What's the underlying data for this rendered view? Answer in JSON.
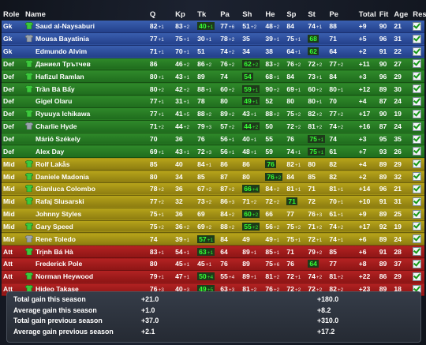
{
  "columns": [
    "Role",
    "Name",
    "Q",
    "Kp",
    "Tk",
    "Pa",
    "Sh",
    "He",
    "Sp",
    "St",
    "Pe",
    "Total",
    "Fit",
    "Age",
    "Rest"
  ],
  "players": [
    {
      "role": "Gk",
      "shirt": "green",
      "name": "Saud al-Naysaburi",
      "Q": [
        "82",
        "+1"
      ],
      "Kp": [
        "83",
        "+2"
      ],
      "Tk": [
        "40",
        "+1"
      ],
      "Pa": [
        "77",
        "+6"
      ],
      "Sh": [
        "51",
        "+2"
      ],
      "He": [
        "48",
        "+2"
      ],
      "Sp": [
        "84",
        ""
      ],
      "St": [
        "74",
        "+1"
      ],
      "Pe": [
        "88",
        ""
      ],
      "Total": "+9",
      "Fit": "90",
      "Age": "21",
      "hl": [
        "Tk"
      ],
      "band": "gk"
    },
    {
      "role": "Gk",
      "shirt": "gray",
      "name": "Mousa Bayatinia",
      "Q": [
        "77",
        "+1"
      ],
      "Kp": [
        "75",
        "+1"
      ],
      "Tk": [
        "30",
        "+1"
      ],
      "Pa": [
        "78",
        "+2"
      ],
      "Sh": [
        "35",
        ""
      ],
      "He": [
        "39",
        "+1"
      ],
      "Sp": [
        "75",
        "+1"
      ],
      "St": [
        "68",
        ""
      ],
      "Pe": [
        "71",
        ""
      ],
      "Total": "+5",
      "Fit": "96",
      "Age": "31",
      "hl": [
        "St"
      ],
      "band": "gk"
    },
    {
      "role": "Gk",
      "shirt": "",
      "name": "Edmundo Alvim",
      "Q": [
        "71",
        "+1"
      ],
      "Kp": [
        "70",
        "+1"
      ],
      "Tk": [
        "51",
        ""
      ],
      "Pa": [
        "74",
        "+2"
      ],
      "Sh": [
        "34",
        ""
      ],
      "He": [
        "38",
        ""
      ],
      "Sp": [
        "64",
        "+1"
      ],
      "St": [
        "62",
        ""
      ],
      "Pe": [
        "64",
        ""
      ],
      "Total": "+2",
      "Fit": "91",
      "Age": "22",
      "hl": [
        "St"
      ],
      "band": "gk"
    },
    {
      "role": "Def",
      "shirt": "green",
      "name": "Даниел Трътчев",
      "Q": [
        "86",
        ""
      ],
      "Kp": [
        "46",
        "+2"
      ],
      "Tk": [
        "86",
        "+2"
      ],
      "Pa": [
        "76",
        "+2"
      ],
      "Sh": [
        "62",
        "+2"
      ],
      "He": [
        "83",
        "+2"
      ],
      "Sp": [
        "76",
        "+2"
      ],
      "St": [
        "72",
        "+2"
      ],
      "Pe": [
        "77",
        "+2"
      ],
      "Total": "+11",
      "Fit": "90",
      "Age": "27",
      "hl": [
        "Sh"
      ],
      "band": "def"
    },
    {
      "role": "Def",
      "shirt": "green",
      "name": "Hafizul Ramlan",
      "Q": [
        "80",
        "+1"
      ],
      "Kp": [
        "43",
        "+1"
      ],
      "Tk": [
        "89",
        ""
      ],
      "Pa": [
        "74",
        ""
      ],
      "Sh": [
        "54",
        ""
      ],
      "He": [
        "68",
        "+1"
      ],
      "Sp": [
        "84",
        ""
      ],
      "St": [
        "73",
        "+1"
      ],
      "Pe": [
        "84",
        ""
      ],
      "Total": "+3",
      "Fit": "96",
      "Age": "29",
      "hl": [
        "Sh"
      ],
      "band": "def"
    },
    {
      "role": "Def",
      "shirt": "green",
      "name": "Trần Bá Bẩy",
      "Q": [
        "80",
        "+2"
      ],
      "Kp": [
        "42",
        "+2"
      ],
      "Tk": [
        "88",
        "+1"
      ],
      "Pa": [
        "60",
        "+2"
      ],
      "Sh": [
        "59",
        "+1"
      ],
      "He": [
        "90",
        "+2"
      ],
      "Sp": [
        "69",
        "+1"
      ],
      "St": [
        "60",
        "+2"
      ],
      "Pe": [
        "80",
        "+1"
      ],
      "Total": "+12",
      "Fit": "89",
      "Age": "30",
      "hl": [
        "Sh"
      ],
      "band": "def"
    },
    {
      "role": "Def",
      "shirt": "",
      "name": "Gigel Olaru",
      "Q": [
        "77",
        "+1"
      ],
      "Kp": [
        "31",
        "+1"
      ],
      "Tk": [
        "78",
        ""
      ],
      "Pa": [
        "80",
        ""
      ],
      "Sh": [
        "49",
        "+1"
      ],
      "He": [
        "52",
        ""
      ],
      "Sp": [
        "80",
        ""
      ],
      "St": [
        "80",
        "+1"
      ],
      "Pe": [
        "70",
        ""
      ],
      "Total": "+4",
      "Fit": "87",
      "Age": "24",
      "hl": [
        "Sh"
      ],
      "band": "def"
    },
    {
      "role": "Def",
      "shirt": "green",
      "name": "Ryuuya Ichikawa",
      "Q": [
        "77",
        "+1"
      ],
      "Kp": [
        "41",
        "+5"
      ],
      "Tk": [
        "88",
        "+2"
      ],
      "Pa": [
        "89",
        "+2"
      ],
      "Sh": [
        "43",
        "+1"
      ],
      "He": [
        "88",
        "+2"
      ],
      "Sp": [
        "75",
        "+2"
      ],
      "St": [
        "82",
        "+2"
      ],
      "Pe": [
        "77",
        "+2"
      ],
      "Total": "+17",
      "Fit": "90",
      "Age": "19",
      "hl": [],
      "band": "def"
    },
    {
      "role": "Def",
      "shirt": "gray",
      "name": "Charlie Hyde",
      "Q": [
        "71",
        "+2"
      ],
      "Kp": [
        "44",
        "+2"
      ],
      "Tk": [
        "79",
        "+3"
      ],
      "Sh": [
        "44",
        "+2"
      ],
      "Pa": [
        "57",
        "+2"
      ],
      "He": [
        "50",
        ""
      ],
      "Sp": [
        "72",
        "+2"
      ],
      "St": [
        "81",
        "+2"
      ],
      "Pe": [
        "74",
        "+2"
      ],
      "Total": "+16",
      "Fit": "87",
      "Age": "24",
      "hl": [
        "Sh"
      ],
      "band": "def"
    },
    {
      "role": "Def",
      "shirt": "",
      "name": "Márió Székely",
      "Q": [
        "70",
        ""
      ],
      "Kp": [
        "36",
        ""
      ],
      "Tk": [
        "76",
        ""
      ],
      "Pa": [
        "56",
        "+1"
      ],
      "Sh": [
        "40",
        "+1"
      ],
      "He": [
        "55",
        ""
      ],
      "Sp": [
        "76",
        ""
      ],
      "St": [
        "75",
        "+1"
      ],
      "Pe": [
        "74",
        ""
      ],
      "Total": "+3",
      "Fit": "95",
      "Age": "35",
      "hl": [
        "St"
      ],
      "band": "def"
    },
    {
      "role": "Def",
      "shirt": "",
      "name": "Alex Day",
      "Q": [
        "69",
        "+1"
      ],
      "Kp": [
        "43",
        "+1"
      ],
      "Tk": [
        "72",
        "+3"
      ],
      "Pa": [
        "56",
        "+1"
      ],
      "Sh": [
        "48",
        "+1"
      ],
      "He": [
        "59",
        ""
      ],
      "Sp": [
        "74",
        "+1"
      ],
      "St": [
        "75",
        "+1"
      ],
      "Pe": [
        "61",
        ""
      ],
      "Total": "+7",
      "Fit": "93",
      "Age": "26",
      "hl": [
        "St"
      ],
      "band": "def"
    },
    {
      "role": "Mid",
      "shirt": "green",
      "name": "Rolf Lakås",
      "Q": [
        "85",
        ""
      ],
      "Kp": [
        "40",
        ""
      ],
      "Tk": [
        "84",
        "+1"
      ],
      "Pa": [
        "86",
        ""
      ],
      "Sh": [
        "86",
        ""
      ],
      "He": [
        "76",
        ""
      ],
      "Sp": [
        "82",
        "+1"
      ],
      "St": [
        "80",
        ""
      ],
      "Pe": [
        "82",
        ""
      ],
      "Total": "+4",
      "Fit": "89",
      "Age": "29",
      "hl": [
        "He"
      ],
      "band": "mid"
    },
    {
      "role": "Mid",
      "shirt": "green",
      "name": "Daniele Madonia",
      "Q": [
        "80",
        ""
      ],
      "Kp": [
        "34",
        ""
      ],
      "Tk": [
        "85",
        ""
      ],
      "Pa": [
        "87",
        ""
      ],
      "Sh": [
        "80",
        ""
      ],
      "He": [
        "76",
        "+2"
      ],
      "Sp": [
        "84",
        ""
      ],
      "St": [
        "85",
        ""
      ],
      "Pe": [
        "82",
        ""
      ],
      "Total": "+2",
      "Fit": "89",
      "Age": "32",
      "hl": [
        "He"
      ],
      "band": "mid"
    },
    {
      "role": "Mid",
      "shirt": "green",
      "name": "Gianluca Colombo",
      "Q": [
        "78",
        "+2"
      ],
      "Kp": [
        "36",
        ""
      ],
      "Tk": [
        "67",
        "+2"
      ],
      "Pa": [
        "87",
        "+2"
      ],
      "Sh": [
        "66",
        "+4"
      ],
      "He": [
        "84",
        "+2"
      ],
      "Sp": [
        "81",
        "+1"
      ],
      "St": [
        "71",
        ""
      ],
      "Pe": [
        "81",
        "+1"
      ],
      "Total": "+14",
      "Fit": "96",
      "Age": "21",
      "hl": [
        "Sh"
      ],
      "band": "mid"
    },
    {
      "role": "Mid",
      "shirt": "green",
      "name": "Rafaj Slusarski",
      "Q": [
        "77",
        "+2"
      ],
      "Kp": [
        "32",
        ""
      ],
      "Tk": [
        "73",
        "+2"
      ],
      "Pa": [
        "86",
        "+3"
      ],
      "Sh": [
        "71",
        "+2"
      ],
      "He": [
        "72",
        "+2"
      ],
      "Sp": [
        "71",
        ""
      ],
      "St": [
        "72",
        ""
      ],
      "Pe": [
        "70",
        "+1"
      ],
      "Total": "+10",
      "Fit": "91",
      "Age": "31",
      "hl": [
        "Sp"
      ],
      "band": "mid"
    },
    {
      "role": "Mid",
      "shirt": "",
      "name": "Johnny Styles",
      "Q": [
        "75",
        "+1"
      ],
      "Kp": [
        "36",
        ""
      ],
      "Tk": [
        "69",
        ""
      ],
      "Pa": [
        "84",
        "+2"
      ],
      "Sh": [
        "60",
        "+2"
      ],
      "He": [
        "66",
        ""
      ],
      "Sp": [
        "77",
        ""
      ],
      "St": [
        "76",
        "+3"
      ],
      "Pe": [
        "61",
        "+1"
      ],
      "Total": "+9",
      "Fit": "89",
      "Age": "25",
      "hl": [
        "Sh"
      ],
      "band": "mid"
    },
    {
      "role": "Mid",
      "shirt": "green",
      "name": "Gary Speed",
      "Q": [
        "75",
        "+2"
      ],
      "Kp": [
        "36",
        "+2"
      ],
      "Tk": [
        "69",
        "+2"
      ],
      "Pa": [
        "88",
        "+2"
      ],
      "Sh": [
        "55",
        "+2"
      ],
      "He": [
        "56",
        "+2"
      ],
      "Sp": [
        "75",
        "+2"
      ],
      "St": [
        "71",
        "+2"
      ],
      "Pe": [
        "74",
        "+2"
      ],
      "Total": "+17",
      "Fit": "92",
      "Age": "19",
      "hl": [
        "Sh"
      ],
      "band": "mid"
    },
    {
      "role": "Mid",
      "shirt": "gray",
      "name": "Rene Toledo",
      "Q": [
        "74",
        ""
      ],
      "Kp": [
        "39",
        "+1"
      ],
      "Tk": [
        "57",
        "+1"
      ],
      "Pa": [
        "84",
        ""
      ],
      "Sh": [
        "49",
        ""
      ],
      "He": [
        "49",
        "+1"
      ],
      "Sp": [
        "75",
        "+1"
      ],
      "St": [
        "72",
        "+1"
      ],
      "Pe": [
        "74",
        "+1"
      ],
      "Total": "+6",
      "Fit": "89",
      "Age": "24",
      "hl": [
        "Tk"
      ],
      "band": "mid"
    },
    {
      "role": "Att",
      "shirt": "green",
      "name": "Trịnh Bá Hà",
      "Q": [
        "83",
        "+1"
      ],
      "Kp": [
        "54",
        "+1"
      ],
      "Tk": [
        "63",
        "+1"
      ],
      "Pa": [
        "64",
        ""
      ],
      "Sh": [
        "89",
        "+1"
      ],
      "He": [
        "85",
        "+1"
      ],
      "Sp": [
        "71",
        ""
      ],
      "St": [
        "79",
        "+2"
      ],
      "Pe": [
        "85",
        ""
      ],
      "Total": "+6",
      "Fit": "91",
      "Age": "28",
      "hl": [
        "Tk"
      ],
      "band": "att"
    },
    {
      "role": "Att",
      "shirt": "",
      "name": "Frederick Pole",
      "Q": [
        "80",
        ""
      ],
      "Kp": [
        "45",
        "+1"
      ],
      "Tk": [
        "45",
        "+1"
      ],
      "Pa": [
        "76",
        ""
      ],
      "Sh": [
        "89",
        ""
      ],
      "He": [
        "75",
        "+6"
      ],
      "Sp": [
        "76",
        ""
      ],
      "St": [
        "64",
        ""
      ],
      "Pe": [
        "77",
        ""
      ],
      "Total": "+8",
      "Fit": "89",
      "Age": "37",
      "hl": [
        "St"
      ],
      "band": "att"
    },
    {
      "role": "Att",
      "shirt": "green",
      "name": "Norman Heywood",
      "Q": [
        "79",
        "+1"
      ],
      "Kp": [
        "47",
        "+1"
      ],
      "Tk": [
        "50",
        "+4"
      ],
      "Pa": [
        "55",
        "+4"
      ],
      "Sh": [
        "89",
        "+1"
      ],
      "He": [
        "81",
        "+2"
      ],
      "Sp": [
        "72",
        "+1"
      ],
      "St": [
        "74",
        "+2"
      ],
      "Pe": [
        "81",
        "+2"
      ],
      "Total": "+22",
      "Fit": "86",
      "Age": "29",
      "hl": [
        "Tk"
      ],
      "band": "att"
    },
    {
      "role": "Att",
      "shirt": "green",
      "name": "Hideo Takase",
      "Q": [
        "76",
        "+3"
      ],
      "Kp": [
        "40",
        "+3"
      ],
      "Tk": [
        "49",
        "+5"
      ],
      "Pa": [
        "63",
        "+3"
      ],
      "Sh": [
        "81",
        "+2"
      ],
      "He": [
        "76",
        "+2"
      ],
      "Sp": [
        "72",
        "+2"
      ],
      "St": [
        "72",
        "+2"
      ],
      "Pe": [
        "82",
        "+2"
      ],
      "Total": "+23",
      "Fit": "89",
      "Age": "18",
      "hl": [
        "Tk"
      ],
      "band": "att"
    }
  ],
  "summary": [
    {
      "label": "Total gain this season",
      "v1": "+21.0",
      "v2": "+180.0"
    },
    {
      "label": "Average gain this season",
      "v1": "+1.0",
      "v2": "+8.2"
    },
    {
      "label": "Total gain previous season",
      "v1": "+37.0",
      "v2": "+310.0"
    },
    {
      "label": "Average gain previous season",
      "v1": "+2.1",
      "v2": "+17.2"
    }
  ],
  "colors": {
    "highlight": "#34ff34",
    "gk": "#23408a",
    "def": "#1f6c1d",
    "mid": "#8c7c10",
    "att": "#8d1515"
  }
}
